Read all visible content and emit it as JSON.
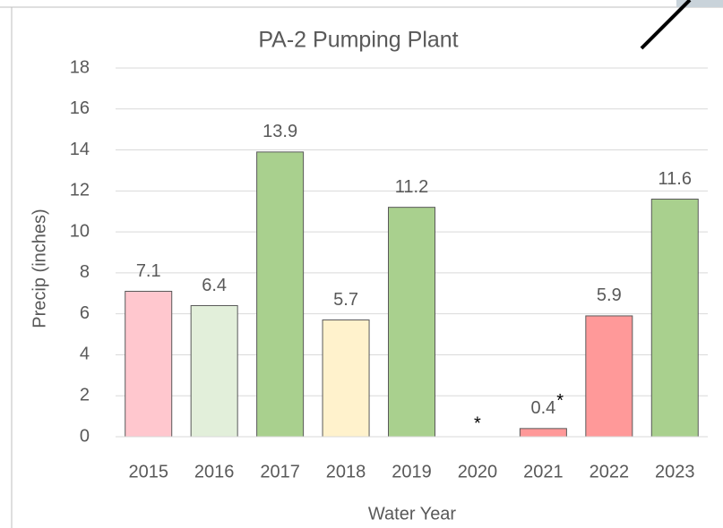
{
  "chart_data": {
    "type": "bar",
    "title": "PA-2 Pumping Plant",
    "x_label": "Water Year",
    "y_label": "Precip (inches)",
    "categories": [
      "2015",
      "2016",
      "2017",
      "2018",
      "2019",
      "2020",
      "2021",
      "2022",
      "2023"
    ],
    "values": [
      7.1,
      6.4,
      13.9,
      5.7,
      11.2,
      null,
      0.4,
      5.9,
      11.6
    ],
    "colors": [
      "#ffc7ce",
      "#e2efda",
      "#a9d08e",
      "#fff2cc",
      "#a9d08e",
      null,
      "#ff9999",
      "#ff9999",
      "#a9d08e"
    ],
    "data_labels": true,
    "annotations": [
      {
        "category": "2020",
        "text": "*"
      },
      {
        "category": "2021",
        "text": "*"
      }
    ],
    "ylim": [
      0,
      18
    ],
    "yticks": [
      0,
      2,
      4,
      6,
      8,
      10,
      12,
      14,
      16,
      18
    ],
    "grid": true
  }
}
